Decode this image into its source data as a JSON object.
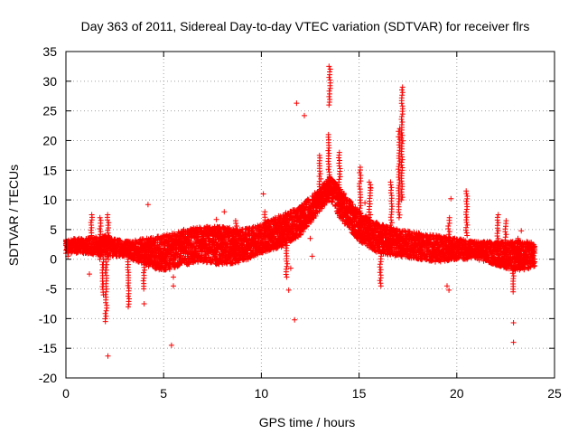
{
  "chart_data": {
    "type": "scatter",
    "title": "Day 363 of 2011, Sidereal Day-to-day VTEC variation (SDTVAR) for receiver flrs",
    "xlabel": "GPS time / hours",
    "ylabel": "SDTVAR / TECUs",
    "xlim": [
      0,
      25
    ],
    "ylim": [
      -20,
      35
    ],
    "xticks": [
      0,
      5,
      10,
      15,
      20,
      25
    ],
    "yticks": [
      -20,
      -15,
      -10,
      -5,
      0,
      5,
      10,
      15,
      20,
      25,
      30,
      35
    ],
    "grid": true,
    "color": "#ff0000",
    "marker": "plus",
    "series": [
      {
        "name": "SDTVAR",
        "base_band": [
          {
            "x": 0.0,
            "lo": 1.0,
            "hi": 3.5
          },
          {
            "x": 1.0,
            "lo": 1.0,
            "hi": 3.5
          },
          {
            "x": 2.0,
            "lo": 0.5,
            "hi": 4.0
          },
          {
            "x": 3.0,
            "lo": 0.5,
            "hi": 3.0
          },
          {
            "x": 4.0,
            "lo": -1.0,
            "hi": 3.5
          },
          {
            "x": 5.0,
            "lo": -2.0,
            "hi": 4.0
          },
          {
            "x": 6.0,
            "lo": -1.0,
            "hi": 5.0
          },
          {
            "x": 7.0,
            "lo": -0.5,
            "hi": 5.5
          },
          {
            "x": 8.0,
            "lo": -1.0,
            "hi": 5.5
          },
          {
            "x": 9.0,
            "lo": -0.5,
            "hi": 5.0
          },
          {
            "x": 10.0,
            "lo": 1.0,
            "hi": 6.0
          },
          {
            "x": 11.0,
            "lo": 2.0,
            "hi": 7.5
          },
          {
            "x": 12.0,
            "lo": 4.0,
            "hi": 9.0
          },
          {
            "x": 13.0,
            "lo": 8.0,
            "hi": 12.0
          },
          {
            "x": 13.5,
            "lo": 10.0,
            "hi": 14.0
          },
          {
            "x": 14.0,
            "lo": 7.0,
            "hi": 12.0
          },
          {
            "x": 15.0,
            "lo": 3.0,
            "hi": 8.0
          },
          {
            "x": 16.0,
            "lo": 1.0,
            "hi": 6.0
          },
          {
            "x": 17.0,
            "lo": 0.5,
            "hi": 5.0
          },
          {
            "x": 18.0,
            "lo": 0.0,
            "hi": 4.5
          },
          {
            "x": 19.0,
            "lo": -0.5,
            "hi": 4.0
          },
          {
            "x": 20.0,
            "lo": 0.0,
            "hi": 3.5
          },
          {
            "x": 21.0,
            "lo": 0.0,
            "hi": 3.0
          },
          {
            "x": 22.0,
            "lo": -1.0,
            "hi": 3.0
          },
          {
            "x": 23.0,
            "lo": -2.0,
            "hi": 3.0
          },
          {
            "x": 24.0,
            "lo": -1.5,
            "hi": 3.0
          }
        ],
        "spikes": [
          {
            "x": 1.3,
            "from": 4.0,
            "to": 7.5
          },
          {
            "x": 1.75,
            "from": 0.0,
            "to": 7.0
          },
          {
            "x": 1.9,
            "from": 0.0,
            "to": -6.0
          },
          {
            "x": 2.05,
            "from": 0.0,
            "to": -10.5
          },
          {
            "x": 2.15,
            "from": 0.0,
            "to": 7.5
          },
          {
            "x": 3.2,
            "from": 0.0,
            "to": -8.0
          },
          {
            "x": 4.0,
            "from": 0.0,
            "to": -5.0
          },
          {
            "x": 8.7,
            "from": 2.0,
            "to": 6.5
          },
          {
            "x": 10.2,
            "from": 2.0,
            "to": 8.0
          },
          {
            "x": 11.3,
            "from": -3.0,
            "to": 5.0
          },
          {
            "x": 13.0,
            "from": 10.0,
            "to": 17.5
          },
          {
            "x": 13.45,
            "from": 12.0,
            "to": 21.0
          },
          {
            "x": 13.5,
            "from": 26.0,
            "to": 32.5
          },
          {
            "x": 14.0,
            "from": 8.0,
            "to": 18.0
          },
          {
            "x": 15.05,
            "from": 4.0,
            "to": 15.5
          },
          {
            "x": 15.55,
            "from": 2.0,
            "to": 13.0
          },
          {
            "x": 16.1,
            "from": 1.0,
            "to": -4.5
          },
          {
            "x": 16.65,
            "from": 3.0,
            "to": 13.0
          },
          {
            "x": 17.05,
            "from": 7.0,
            "to": 22.0
          },
          {
            "x": 17.2,
            "from": 10.0,
            "to": 29.0
          },
          {
            "x": 19.6,
            "from": 0.0,
            "to": 7.0
          },
          {
            "x": 20.5,
            "from": 4.0,
            "to": 11.5
          },
          {
            "x": 22.1,
            "from": -1.0,
            "to": 7.5
          },
          {
            "x": 22.5,
            "from": 0.0,
            "to": 6.5
          },
          {
            "x": 22.9,
            "from": -1.0,
            "to": -5.5
          },
          {
            "x": 23.15,
            "from": 0.0,
            "to": 3.5
          }
        ],
        "outliers": [
          [
            0.1,
            0.5
          ],
          [
            1.2,
            -2.5
          ],
          [
            2.15,
            -16.3
          ],
          [
            4.0,
            -7.5
          ],
          [
            4.2,
            9.2
          ],
          [
            5.4,
            -14.5
          ],
          [
            5.5,
            -4.5
          ],
          [
            5.5,
            -3.0
          ],
          [
            7.7,
            6.7
          ],
          [
            8.1,
            8.0
          ],
          [
            10.1,
            11.0
          ],
          [
            10.3,
            4.0
          ],
          [
            11.5,
            -1.5
          ],
          [
            11.4,
            -5.2
          ],
          [
            11.7,
            -10.2
          ],
          [
            11.8,
            26.3
          ],
          [
            12.2,
            24.2
          ],
          [
            12.6,
            0.5
          ],
          [
            12.5,
            3.5
          ],
          [
            15.3,
            9.5
          ],
          [
            15.6,
            12.0
          ],
          [
            19.5,
            -4.5
          ],
          [
            19.6,
            -5.2
          ],
          [
            19.7,
            10.2
          ],
          [
            22.9,
            -10.7
          ],
          [
            22.9,
            -14.0
          ],
          [
            23.3,
            4.8
          ]
        ]
      }
    ]
  }
}
